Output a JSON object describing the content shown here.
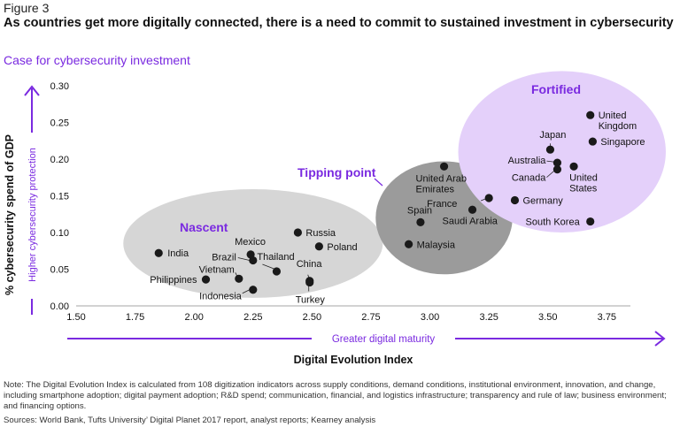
{
  "figure_label": "Figure 3",
  "headline": "As countries get more digitally connected, there is a need to commit to sustained investment in cybersecurity",
  "note": "Note: The Digital Evolution Index is calculated from 108 digitization indicators across supply conditions, demand conditions, institutional environment, innovation, and change, including smartphone adoption; digital payment adoption; R&D spend; communication, financial, and logistics infrastructure; transparency and rule of law; business environment; and financing options.",
  "sources": "Sources: World Bank, Tufts University’ Digital Planet 2017 report, analyst reports; Kearney analysis",
  "colors": {
    "accent": "#7a2ae0",
    "nascent_fill": "#d6d6d6",
    "tipping_fill": "#9b9b9b",
    "fortified_fill": "#e4d0fa",
    "point": "#1a1a1a"
  },
  "chart_data": {
    "type": "scatter",
    "title": "Case for cybersecurity investment",
    "xlabel": "Digital Evolution Index",
    "ylabel": "% cybersecurity spend of GDP",
    "x_arrow_label": "Greater digital maturity",
    "y_arrow_label": "Higher cybersecurity protection",
    "xlim": [
      1.5,
      3.85
    ],
    "ylim": [
      0,
      0.3
    ],
    "x_ticks": [
      1.5,
      1.75,
      2.0,
      2.25,
      2.5,
      2.75,
      3.0,
      3.25,
      3.5,
      3.75
    ],
    "x_tick_labels": [
      "1.50",
      "1.75",
      "2.00",
      "2.25",
      "2.50",
      "2.75",
      "3.00",
      "3.25",
      "3.50",
      "3.75"
    ],
    "y_ticks": [
      0,
      0.05,
      0.1,
      0.15,
      0.2,
      0.25,
      0.3
    ],
    "y_tick_labels": [
      "0.00",
      "0.05",
      "0.10",
      "0.15",
      "0.20",
      "0.25",
      "0.30"
    ],
    "grid": false,
    "clusters": [
      {
        "name": "Nascent",
        "cx": 2.25,
        "cy": 0.085,
        "rx": 0.55,
        "ry": 0.074
      },
      {
        "name": "Tipping point",
        "cx": 3.06,
        "cy": 0.12,
        "rx": 0.29,
        "ry": 0.077
      },
      {
        "name": "Fortified",
        "cx": 3.56,
        "cy": 0.21,
        "rx": 0.44,
        "ry": 0.11
      }
    ],
    "points": [
      {
        "country": "India",
        "x": 1.85,
        "y": 0.072
      },
      {
        "country": "Philippines",
        "x": 2.05,
        "y": 0.036
      },
      {
        "country": "Vietnam",
        "x": 2.19,
        "y": 0.037
      },
      {
        "country": "Indonesia",
        "x": 2.25,
        "y": 0.022
      },
      {
        "country": "Mexico",
        "x": 2.24,
        "y": 0.07
      },
      {
        "country": "Brazil",
        "x": 2.25,
        "y": 0.062
      },
      {
        "country": "Thailand",
        "x": 2.35,
        "y": 0.047
      },
      {
        "country": "China",
        "x": 2.49,
        "y": 0.034
      },
      {
        "country": "Turkey",
        "x": 2.49,
        "y": 0.032
      },
      {
        "country": "Russia",
        "x": 2.44,
        "y": 0.1
      },
      {
        "country": "Poland",
        "x": 2.53,
        "y": 0.081
      },
      {
        "country": "United Arab Emirates",
        "x": 3.06,
        "y": 0.19
      },
      {
        "country": "Spain",
        "x": 2.96,
        "y": 0.114
      },
      {
        "country": "Malaysia",
        "x": 2.91,
        "y": 0.084
      },
      {
        "country": "France",
        "x": 3.25,
        "y": 0.147
      },
      {
        "country": "Saudi Arabia",
        "x": 3.18,
        "y": 0.131
      },
      {
        "country": "Germany",
        "x": 3.36,
        "y": 0.144
      },
      {
        "country": "United Kingdom",
        "x": 3.68,
        "y": 0.26
      },
      {
        "country": "Singapore",
        "x": 3.69,
        "y": 0.224
      },
      {
        "country": "Japan",
        "x": 3.51,
        "y": 0.213
      },
      {
        "country": "Australia",
        "x": 3.54,
        "y": 0.195
      },
      {
        "country": "Canada",
        "x": 3.54,
        "y": 0.186
      },
      {
        "country": "United States",
        "x": 3.61,
        "y": 0.19
      },
      {
        "country": "South Korea",
        "x": 3.68,
        "y": 0.115
      }
    ]
  }
}
